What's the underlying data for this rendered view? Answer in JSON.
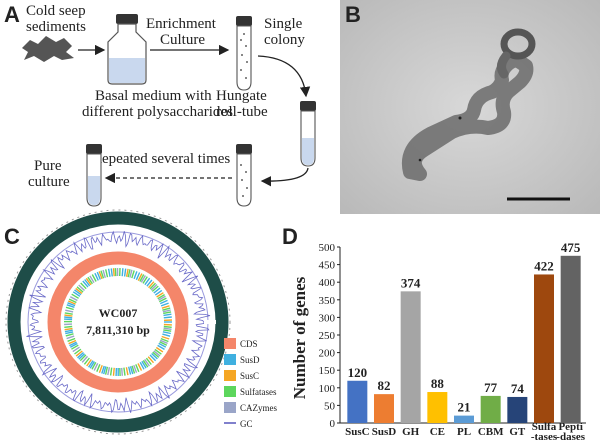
{
  "panels": {
    "a": {
      "letter": "A",
      "sediment_label": [
        "Cold seep",
        "sediments"
      ],
      "enrichment_label": [
        "Enrichment",
        "Culture"
      ],
      "single_colony_label": [
        "Single",
        "colony"
      ],
      "basal_medium_label": [
        "Basal medium with",
        "different polysaccharides"
      ],
      "hungate_label": [
        "Hungate",
        "roll-tube"
      ],
      "repeated_label": "Repeated several times",
      "pure_culture_label": [
        "Pure",
        "culture"
      ]
    },
    "b": {
      "letter": "B"
    },
    "c": {
      "letter": "C",
      "genome_name": "WC007",
      "genome_size": "7,811,310 bp",
      "legend": [
        {
          "label": "CDS",
          "color": "#f4866a"
        },
        {
          "label": "SusD",
          "color": "#3fb0e0"
        },
        {
          "label": "SusC",
          "color": "#f5a623"
        },
        {
          "label": "Sulfatases",
          "color": "#5cd65c"
        },
        {
          "label": "CAZymes",
          "color": "#9aa5c8"
        },
        {
          "label": "GC",
          "color": "#5555bb"
        }
      ]
    },
    "d": {
      "letter": "D"
    }
  },
  "chart_data": {
    "type": "bar",
    "categories": [
      "SusC",
      "SusD",
      "GH",
      "CE",
      "PL",
      "CBM",
      "GT",
      "Sulfa\n-tases",
      "Pepti\n-dases"
    ],
    "values": [
      120,
      82,
      374,
      88,
      21,
      77,
      74,
      422,
      475
    ],
    "colors": [
      "#4472c4",
      "#ed7d31",
      "#a5a5a5",
      "#ffc000",
      "#5b9bd5",
      "#70ad47",
      "#264478",
      "#9e480e",
      "#636363"
    ],
    "ylabel": "Number of genes",
    "ylim": [
      0,
      500
    ],
    "yticks": [
      0,
      50,
      100,
      150,
      200,
      250,
      300,
      350,
      400,
      450,
      500
    ]
  }
}
